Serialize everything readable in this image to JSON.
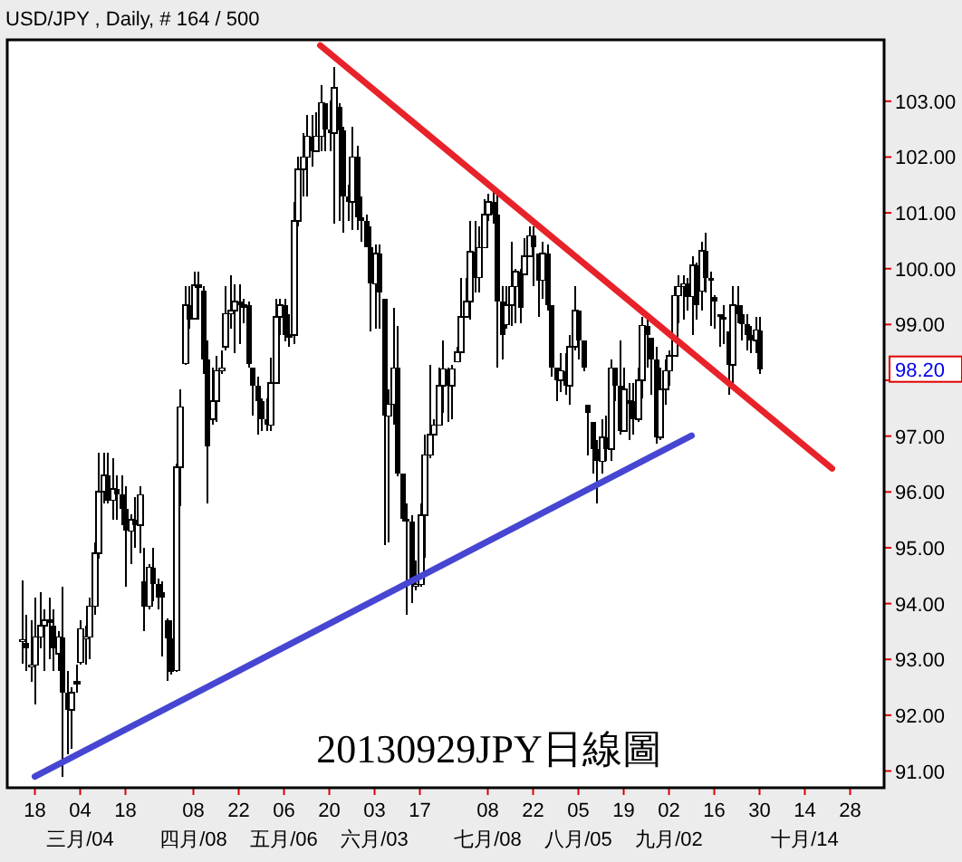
{
  "chart_data": {
    "type": "candlestick",
    "title": "USD/JPY , Daily, # 164 / 500",
    "color": "#000000",
    "annotations": [
      "20130929JPY日線圖",
      "98.20"
    ],
    "categories": [
      null,
      null,
      null,
      "18",
      null,
      null,
      null,
      null,
      null,
      null,
      null,
      null,
      null,
      "04\n三月/04",
      null,
      null,
      null,
      null,
      null,
      null,
      null,
      null,
      null,
      "18",
      null,
      null,
      null,
      null,
      null,
      null,
      null,
      null,
      null,
      null,
      null,
      null,
      null,
      null,
      "08\n四月/08",
      null,
      null,
      null,
      null,
      null,
      null,
      null,
      null,
      null,
      "22",
      null,
      null,
      null,
      null,
      null,
      null,
      null,
      null,
      null,
      "06\n五月/06",
      null,
      null,
      null,
      null,
      null,
      null,
      null,
      null,
      null,
      "20",
      null,
      null,
      null,
      null,
      null,
      null,
      null,
      null,
      null,
      "03\n六月/03",
      null,
      null,
      null,
      null,
      null,
      null,
      null,
      null,
      null,
      "17",
      null,
      null,
      null,
      null,
      null,
      null,
      null,
      null,
      null,
      null,
      null,
      null,
      null,
      null,
      "08\n七月/08",
      null,
      null,
      null,
      null,
      null,
      null,
      null,
      null,
      null,
      "22",
      null,
      null,
      null,
      null,
      null,
      null,
      null,
      null,
      null,
      "05\n八月/05",
      null,
      null,
      null,
      null,
      null,
      null,
      null,
      null,
      null,
      "19",
      null,
      null,
      null,
      null,
      null,
      null,
      null,
      null,
      null,
      "02\n九月/02",
      null,
      null,
      null,
      null,
      null,
      null,
      null,
      null,
      null,
      "16",
      null,
      null,
      null,
      null,
      null,
      null,
      null,
      null,
      null,
      "30",
      null,
      null,
      null,
      null,
      null,
      null,
      null,
      null,
      null,
      "14\n十月/14",
      null,
      null,
      null,
      null,
      null,
      null,
      null,
      null,
      null,
      "28",
      null,
      null,
      null,
      null,
      null,
      null,
      null
    ],
    "ohlc": [
      [
        93.35,
        94.42,
        92.93,
        93.35
      ],
      [
        93.3,
        93.8,
        92.8,
        93.2
      ],
      [
        92.9,
        93.7,
        92.6,
        92.9
      ],
      [
        92.9,
        94.1,
        92.2,
        93.4
      ],
      [
        93.4,
        94.2,
        93.2,
        93.6
      ],
      [
        93.6,
        93.9,
        92.8,
        93.7
      ],
      [
        93.7,
        94.1,
        93.0,
        93.7
      ],
      [
        93.6,
        93.9,
        92.8,
        93.2
      ],
      [
        93.1,
        93.5,
        92.8,
        93.4
      ],
      [
        93.4,
        94.3,
        90.9,
        92.4
      ],
      [
        92.4,
        92.8,
        91.3,
        92.1
      ],
      [
        92.1,
        92.5,
        91.4,
        92.4
      ],
      [
        92.6,
        92.9,
        92.4,
        92.6
      ],
      [
        92.95,
        93.7,
        92.9,
        93.55
      ],
      [
        93.4,
        93.6,
        92.9,
        93.4
      ],
      [
        93.4,
        94.1,
        93.0,
        93.95
      ],
      [
        93.95,
        95.1,
        93.8,
        94.9
      ],
      [
        94.9,
        96.7,
        94.8,
        96.0
      ],
      [
        96.0,
        96.7,
        95.8,
        96.3
      ],
      [
        96.3,
        96.7,
        95.8,
        95.85
      ],
      [
        95.85,
        96.6,
        95.5,
        96.05
      ],
      [
        96.05,
        96.3,
        95.5,
        95.95
      ],
      [
        95.95,
        96.3,
        95.4,
        95.7
      ],
      [
        95.7,
        96.1,
        94.3,
        95.3
      ],
      [
        95.3,
        95.6,
        94.7,
        95.5
      ],
      [
        95.5,
        95.9,
        95.0,
        95.4
      ],
      [
        95.4,
        96.1,
        94.9,
        95.95
      ],
      [
        94.4,
        95.0,
        93.5,
        93.95
      ],
      [
        93.95,
        94.7,
        93.9,
        94.65
      ],
      [
        94.65,
        95.0,
        94.05,
        94.35
      ],
      [
        94.35,
        94.45,
        93.9,
        94.1
      ],
      [
        94.2,
        94.4,
        93.05,
        94.1
      ],
      [
        93.7,
        93.74,
        92.61,
        93.37
      ],
      [
        93.37,
        93.7,
        92.72,
        92.77
      ],
      [
        92.8,
        96.5,
        92.77,
        96.44
      ],
      [
        96.44,
        97.84,
        95.74,
        97.52
      ],
      [
        98.3,
        99.68,
        98.28,
        99.35
      ],
      [
        99.35,
        99.68,
        98.92,
        99.08
      ],
      [
        99.1,
        99.95,
        99.08,
        99.7
      ],
      [
        99.7,
        99.95,
        99.08,
        99.7
      ],
      [
        99.6,
        99.68,
        98.11,
        98.38
      ],
      [
        98.38,
        98.71,
        95.79,
        96.82
      ],
      [
        97.3,
        98.22,
        97.2,
        97.63
      ],
      [
        97.63,
        98.44,
        97.25,
        98.17
      ],
      [
        98.17,
        98.54,
        98.11,
        98.22
      ],
      [
        98.6,
        99.68,
        98.54,
        99.19
      ],
      [
        99.19,
        99.89,
        98.92,
        99.25
      ],
      [
        99.25,
        99.72,
        98.49,
        99.41
      ],
      [
        99.41,
        99.72,
        98.65,
        99.35
      ],
      [
        99.35,
        99.46,
        99.03,
        99.35
      ],
      [
        99.35,
        99.41,
        98.22,
        98.3
      ],
      [
        98.22,
        98.22,
        97.36,
        97.9
      ],
      [
        97.9,
        98.06,
        97.03,
        97.63
      ],
      [
        97.63,
        97.68,
        97.09,
        97.3
      ],
      [
        97.3,
        97.68,
        97.09,
        97.2
      ],
      [
        97.2,
        98.4,
        97.09,
        97.95
      ],
      [
        97.95,
        99.46,
        97.95,
        99.14
      ],
      [
        99.14,
        99.46,
        98.81,
        99.35
      ],
      [
        99.35,
        99.46,
        98.7,
        98.81
      ],
      [
        98.81,
        99.19,
        98.6,
        98.81
      ],
      [
        98.81,
        101.19,
        98.65,
        100.86
      ],
      [
        100.86,
        102.0,
        100.76,
        101.78
      ],
      [
        101.78,
        102.43,
        101.3,
        102.0
      ],
      [
        102.0,
        102.75,
        101.3,
        102.37
      ],
      [
        102.37,
        102.75,
        101.83,
        102.1
      ],
      [
        102.1,
        102.81,
        102.1,
        102.37
      ],
      [
        102.37,
        103.29,
        102.1,
        102.97
      ],
      [
        102.97,
        102.97,
        102.1,
        102.5
      ],
      [
        102.5,
        103.02,
        102.1,
        102.43
      ],
      [
        102.43,
        103.61,
        100.81,
        103.24
      ],
      [
        102.9,
        102.97,
        100.86,
        102.48
      ],
      [
        102.48,
        102.54,
        100.65,
        101.3
      ],
      [
        101.3,
        101.51,
        100.86,
        101.2
      ],
      [
        101.2,
        102.54,
        100.7,
        102.0
      ],
      [
        102.0,
        102.2,
        100.7,
        100.92
      ],
      [
        100.92,
        101.3,
        100.49,
        100.86
      ],
      [
        100.86,
        100.97,
        100.38,
        100.38
      ],
      [
        100.38,
        100.76,
        98.87,
        99.73
      ],
      [
        99.73,
        100.43,
        98.92,
        100.27
      ],
      [
        100.27,
        100.43,
        98.92,
        99.57
      ],
      [
        99.46,
        99.46,
        95.04,
        97.36
      ],
      [
        97.36,
        97.84,
        95.09,
        97.57
      ],
      [
        97.57,
        99.3,
        97.2,
        98.22
      ],
      [
        98.22,
        98.98,
        96.28,
        96.33
      ],
      [
        96.33,
        96.33,
        95.47,
        95.52
      ],
      [
        95.52,
        95.79,
        93.8,
        95.47
      ],
      [
        95.47,
        95.58,
        94.01,
        94.34
      ],
      [
        94.34,
        94.77,
        94.23,
        94.34
      ],
      [
        94.34,
        95.79,
        94.3,
        95.58
      ],
      [
        95.58,
        97.03,
        94.82,
        96.66
      ],
      [
        96.66,
        98.28,
        96.6,
        97.03
      ],
      [
        97.03,
        97.3,
        97.03,
        97.2
      ],
      [
        97.2,
        98.22,
        97.2,
        97.9
      ],
      [
        97.9,
        98.71,
        97.41,
        98.2
      ],
      [
        98.2,
        98.22,
        97.25,
        97.9
      ],
      [
        97.9,
        98.28,
        97.3,
        98.2
      ],
      [
        98.33,
        98.6,
        98.33,
        98.5
      ],
      [
        98.5,
        99.84,
        98.49,
        99.14
      ],
      [
        99.14,
        99.84,
        99.14,
        99.41
      ],
      [
        99.41,
        100.86,
        99.08,
        100.3
      ],
      [
        100.3,
        100.86,
        99.57,
        99.84
      ],
      [
        99.84,
        100.76,
        99.57,
        100.38
      ],
      [
        100.38,
        101.24,
        100.38,
        100.97
      ],
      [
        100.97,
        101.35,
        100.86,
        101.2
      ],
      [
        101.2,
        101.4,
        100.81,
        100.97
      ],
      [
        100.97,
        101.35,
        98.22,
        99.41
      ],
      [
        99.41,
        99.68,
        98.38,
        98.81
      ],
      [
        99.0,
        99.68,
        98.92,
        99.35
      ],
      [
        99.35,
        100.49,
        98.98,
        99.68
      ],
      [
        99.68,
        100.0,
        99.03,
        99.95
      ],
      [
        99.95,
        99.99,
        99.03,
        99.3
      ],
      [
        99.9,
        100.54,
        99.89,
        100.22
      ],
      [
        100.22,
        100.76,
        100.22,
        100.59
      ],
      [
        100.59,
        100.76,
        99.68,
        100.38
      ],
      [
        100.27,
        100.27,
        99.14,
        99.79
      ],
      [
        99.79,
        100.49,
        99.46,
        100.27
      ],
      [
        100.27,
        100.43,
        99.25,
        99.35
      ],
      [
        99.35,
        99.35,
        98.06,
        98.22
      ],
      [
        98.22,
        98.22,
        97.63,
        98.0
      ],
      [
        98.0,
        98.49,
        97.79,
        98.17
      ],
      [
        98.17,
        98.49,
        97.74,
        97.9
      ],
      [
        97.9,
        98.81,
        97.57,
        98.6
      ],
      [
        98.6,
        99.68,
        98.54,
        99.25
      ],
      [
        99.25,
        99.25,
        98.38,
        98.71
      ],
      [
        98.71,
        98.71,
        98.17,
        98.22
      ],
      [
        97.57,
        97.57,
        96.66,
        97.41
      ],
      [
        97.25,
        97.25,
        96.33,
        96.77
      ],
      [
        96.77,
        96.93,
        95.79,
        96.55
      ],
      [
        96.55,
        97.3,
        96.33,
        96.98
      ],
      [
        96.98,
        97.36,
        96.55,
        96.77
      ],
      [
        96.77,
        98.38,
        96.55,
        98.22
      ],
      [
        98.22,
        98.22,
        97.63,
        97.9
      ],
      [
        97.9,
        98.71,
        97.03,
        97.09
      ],
      [
        97.09,
        98.22,
        97.09,
        97.84
      ],
      [
        97.63,
        97.95,
        96.93,
        97.63
      ],
      [
        97.63,
        97.95,
        97.03,
        97.3
      ],
      [
        97.3,
        98.22,
        97.25,
        98.0
      ],
      [
        98.0,
        99.14,
        97.68,
        98.98
      ],
      [
        98.98,
        99.14,
        98.22,
        98.81
      ],
      [
        98.76,
        98.76,
        97.74,
        98.38
      ],
      [
        98.38,
        98.6,
        96.87,
        96.98
      ],
      [
        96.98,
        98.22,
        96.93,
        97.84
      ],
      [
        97.84,
        98.38,
        97.57,
        98.17
      ],
      [
        98.17,
        98.54,
        97.9,
        98.44
      ],
      [
        98.44,
        99.68,
        98.44,
        99.52
      ],
      [
        99.52,
        99.89,
        99.03,
        99.68
      ],
      [
        99.68,
        99.89,
        99.08,
        99.73
      ],
      [
        99.73,
        99.84,
        99.25,
        99.5
      ],
      [
        99.5,
        100.22,
        98.81,
        100.06
      ],
      [
        100.06,
        100.11,
        99.08,
        99.35
      ],
      [
        99.6,
        100.49,
        99.25,
        100.32
      ],
      [
        100.32,
        100.65,
        99.57,
        99.84
      ],
      [
        99.84,
        99.95,
        98.98,
        99.79
      ],
      [
        99.5,
        99.52,
        98.92,
        99.41
      ],
      [
        99.19,
        99.19,
        98.6,
        99.14
      ],
      [
        99.14,
        99.35,
        98.65,
        99.08
      ],
      [
        98.87,
        98.87,
        97.74,
        98.28
      ],
      [
        98.28,
        99.68,
        97.9,
        99.35
      ],
      [
        99.35,
        99.68,
        99.03,
        99.19
      ],
      [
        99.19,
        99.35,
        98.71,
        99.0
      ],
      [
        99.0,
        99.19,
        98.54,
        98.81
      ],
      [
        98.81,
        98.98,
        98.49,
        98.71
      ],
      [
        98.71,
        99.14,
        98.49,
        98.9
      ],
      [
        98.9,
        99.14,
        98.11,
        98.2
      ],
      null,
      null,
      null,
      null,
      null,
      null,
      null,
      null,
      null,
      null,
      null,
      null,
      null,
      null,
      null,
      null,
      null,
      null,
      null,
      null,
      null,
      null,
      null,
      null,
      null,
      null,
      null
    ],
    "series": [
      {
        "type": "line",
        "color": "#e8222a",
        "values": [
          null,
          null,
          null,
          null,
          null,
          null,
          null,
          null,
          null,
          null,
          null,
          null,
          null,
          null,
          null,
          null,
          null,
          null,
          null,
          null,
          null,
          null,
          null,
          null,
          null,
          null,
          null,
          null,
          null,
          null,
          null,
          null,
          null,
          null,
          null,
          null,
          null,
          null,
          null,
          null,
          null,
          null,
          null,
          null,
          null,
          null,
          null,
          null,
          null,
          null,
          null,
          null,
          null,
          null,
          null,
          null,
          null,
          null,
          null,
          null,
          null,
          null,
          null,
          null,
          null,
          null,
          104.0,
          null,
          null,
          null,
          null,
          null,
          null,
          null,
          null,
          null,
          null,
          null,
          null,
          null,
          null,
          null,
          null,
          null,
          null,
          null,
          null,
          null,
          null,
          null,
          null,
          null,
          null,
          null,
          null,
          null,
          null,
          null,
          null,
          null,
          null,
          null,
          null,
          null,
          null,
          null,
          null,
          null,
          null,
          null,
          null,
          null,
          null,
          null,
          null,
          null,
          null,
          null,
          null,
          null,
          null,
          null,
          null,
          null,
          null,
          null,
          null,
          null,
          null,
          null,
          null,
          null,
          null,
          null,
          null,
          null,
          null,
          null,
          null,
          null,
          null,
          null,
          null,
          null,
          null,
          null,
          null,
          null,
          null,
          null,
          null,
          null,
          null,
          null,
          null,
          null,
          null,
          null,
          null,
          null,
          null,
          null,
          null,
          null,
          null,
          null,
          null,
          null,
          null,
          null,
          null,
          null,
          null,
          null,
          null,
          null,
          null,
          null,
          null,
          96.42,
          null,
          null,
          null,
          null,
          null,
          null,
          null,
          null,
          null,
          null,
          null
        ]
      },
      {
        "type": "line",
        "color": "#4646d2",
        "values": [
          null,
          null,
          null,
          90.9,
          null,
          null,
          null,
          null,
          null,
          null,
          null,
          null,
          null,
          null,
          null,
          null,
          null,
          null,
          null,
          null,
          null,
          null,
          null,
          null,
          null,
          null,
          null,
          null,
          null,
          null,
          null,
          null,
          null,
          null,
          null,
          null,
          null,
          null,
          null,
          null,
          null,
          null,
          null,
          null,
          null,
          null,
          null,
          null,
          null,
          null,
          null,
          null,
          null,
          null,
          null,
          null,
          null,
          null,
          null,
          null,
          null,
          null,
          null,
          null,
          null,
          null,
          null,
          null,
          null,
          null,
          null,
          null,
          null,
          null,
          null,
          null,
          null,
          null,
          null,
          null,
          null,
          null,
          null,
          null,
          null,
          null,
          null,
          null,
          null,
          null,
          null,
          null,
          null,
          null,
          null,
          null,
          null,
          null,
          null,
          null,
          null,
          null,
          null,
          null,
          null,
          null,
          null,
          null,
          null,
          null,
          null,
          null,
          null,
          null,
          null,
          null,
          null,
          null,
          null,
          null,
          null,
          null,
          null,
          null,
          null,
          null,
          null,
          null,
          null,
          null,
          null,
          null,
          null,
          null,
          null,
          null,
          null,
          null,
          null,
          null,
          null,
          null,
          null,
          null,
          null,
          null,
          null,
          null,
          97.01,
          null,
          null,
          null,
          null,
          null,
          null,
          null,
          null,
          null,
          null,
          null,
          null,
          null,
          null,
          null,
          null,
          null,
          null,
          null,
          null,
          null,
          null,
          null,
          null,
          null,
          null,
          null,
          null,
          null,
          null,
          null,
          null,
          null,
          null,
          null,
          null,
          null,
          null,
          null,
          null,
          null,
          null
        ]
      }
    ],
    "ylim": [
      90.7,
      104.1
    ],
    "yticks": [
      {
        "value": 91,
        "label": "91.00"
      },
      {
        "value": 92,
        "label": "92.00"
      },
      {
        "value": 93,
        "label": "93.00"
      },
      {
        "value": 94,
        "label": "94.00"
      },
      {
        "value": 95,
        "label": "95.00"
      },
      {
        "value": 96,
        "label": "96.00"
      },
      {
        "value": 97,
        "label": "97.00"
      },
      {
        "value": 98,
        "label": null
      },
      {
        "value": 99,
        "label": "99.00"
      },
      {
        "value": 100,
        "label": "100.00"
      },
      {
        "value": 101,
        "label": "101.00"
      },
      {
        "value": 102,
        "label": "102.00"
      },
      {
        "value": 103,
        "label": "103.00"
      }
    ]
  }
}
